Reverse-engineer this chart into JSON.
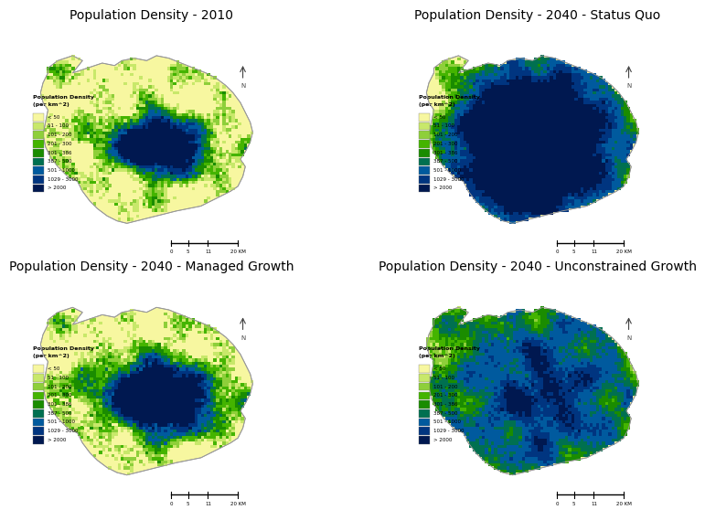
{
  "titles": [
    "Population Density - 2010",
    "Population Density - 2040 - Status Quo",
    "Population Density - 2040 - Managed Growth",
    "Population Density - 2040 - Unconstrained Growth"
  ],
  "legend_title_line1": "Population Density",
  "legend_title_line2": "(per km^2)",
  "legend_labels": [
    "< 50",
    "51 - 100",
    "101 - 200",
    "201 - 300",
    "301 - 386",
    "387 - 500",
    "501 - 1000",
    "1029 - 3000",
    "> 2000"
  ],
  "legend_colors": [
    "#f7f7a0",
    "#c8e86a",
    "#8ecf3a",
    "#44b400",
    "#1a8c00",
    "#007050",
    "#005a9e",
    "#003580",
    "#001850"
  ],
  "background_color": "#ffffff",
  "title_fontsize": 10,
  "map_bg": "#f7f7a0",
  "map_outline": "#999999"
}
